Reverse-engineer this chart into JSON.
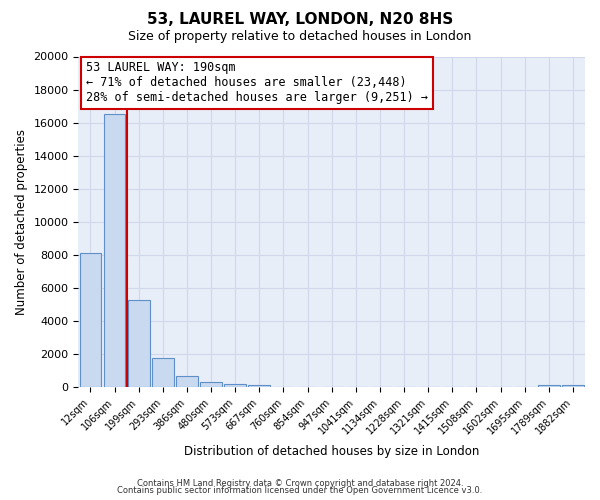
{
  "title": "53, LAUREL WAY, LONDON, N20 8HS",
  "subtitle": "Size of property relative to detached houses in London",
  "xlabel": "Distribution of detached houses by size in London",
  "ylabel": "Number of detached properties",
  "bar_labels": [
    "12sqm",
    "106sqm",
    "199sqm",
    "293sqm",
    "386sqm",
    "480sqm",
    "573sqm",
    "667sqm",
    "760sqm",
    "854sqm",
    "947sqm",
    "1041sqm",
    "1134sqm",
    "1228sqm",
    "1321sqm",
    "1415sqm",
    "1508sqm",
    "1602sqm",
    "1695sqm",
    "1789sqm",
    "1882sqm"
  ],
  "bar_values": [
    8100,
    16500,
    5300,
    1750,
    700,
    290,
    200,
    130,
    0,
    0,
    0,
    0,
    0,
    0,
    0,
    0,
    0,
    0,
    0,
    150,
    150
  ],
  "bar_color": "#c8d9f0",
  "bar_edge_color": "#6090c8",
  "vline_color": "#cc0000",
  "vline_pos": 1.5,
  "ylim": [
    0,
    20000
  ],
  "yticks": [
    0,
    2000,
    4000,
    6000,
    8000,
    10000,
    12000,
    14000,
    16000,
    18000,
    20000
  ],
  "annotation_title": "53 LAUREL WAY: 190sqm",
  "annotation_line1": "← 71% of detached houses are smaller (23,448)",
  "annotation_line2": "28% of semi-detached houses are larger (9,251) →",
  "annotation_box_facecolor": "#ffffff",
  "annotation_box_edgecolor": "#cc0000",
  "footer_line1": "Contains HM Land Registry data © Crown copyright and database right 2024.",
  "footer_line2": "Contains public sector information licensed under the Open Government Licence v3.0.",
  "grid_color": "#d0d8ea",
  "plot_bg_color": "#e8eef8",
  "fig_bg_color": "#ffffff"
}
